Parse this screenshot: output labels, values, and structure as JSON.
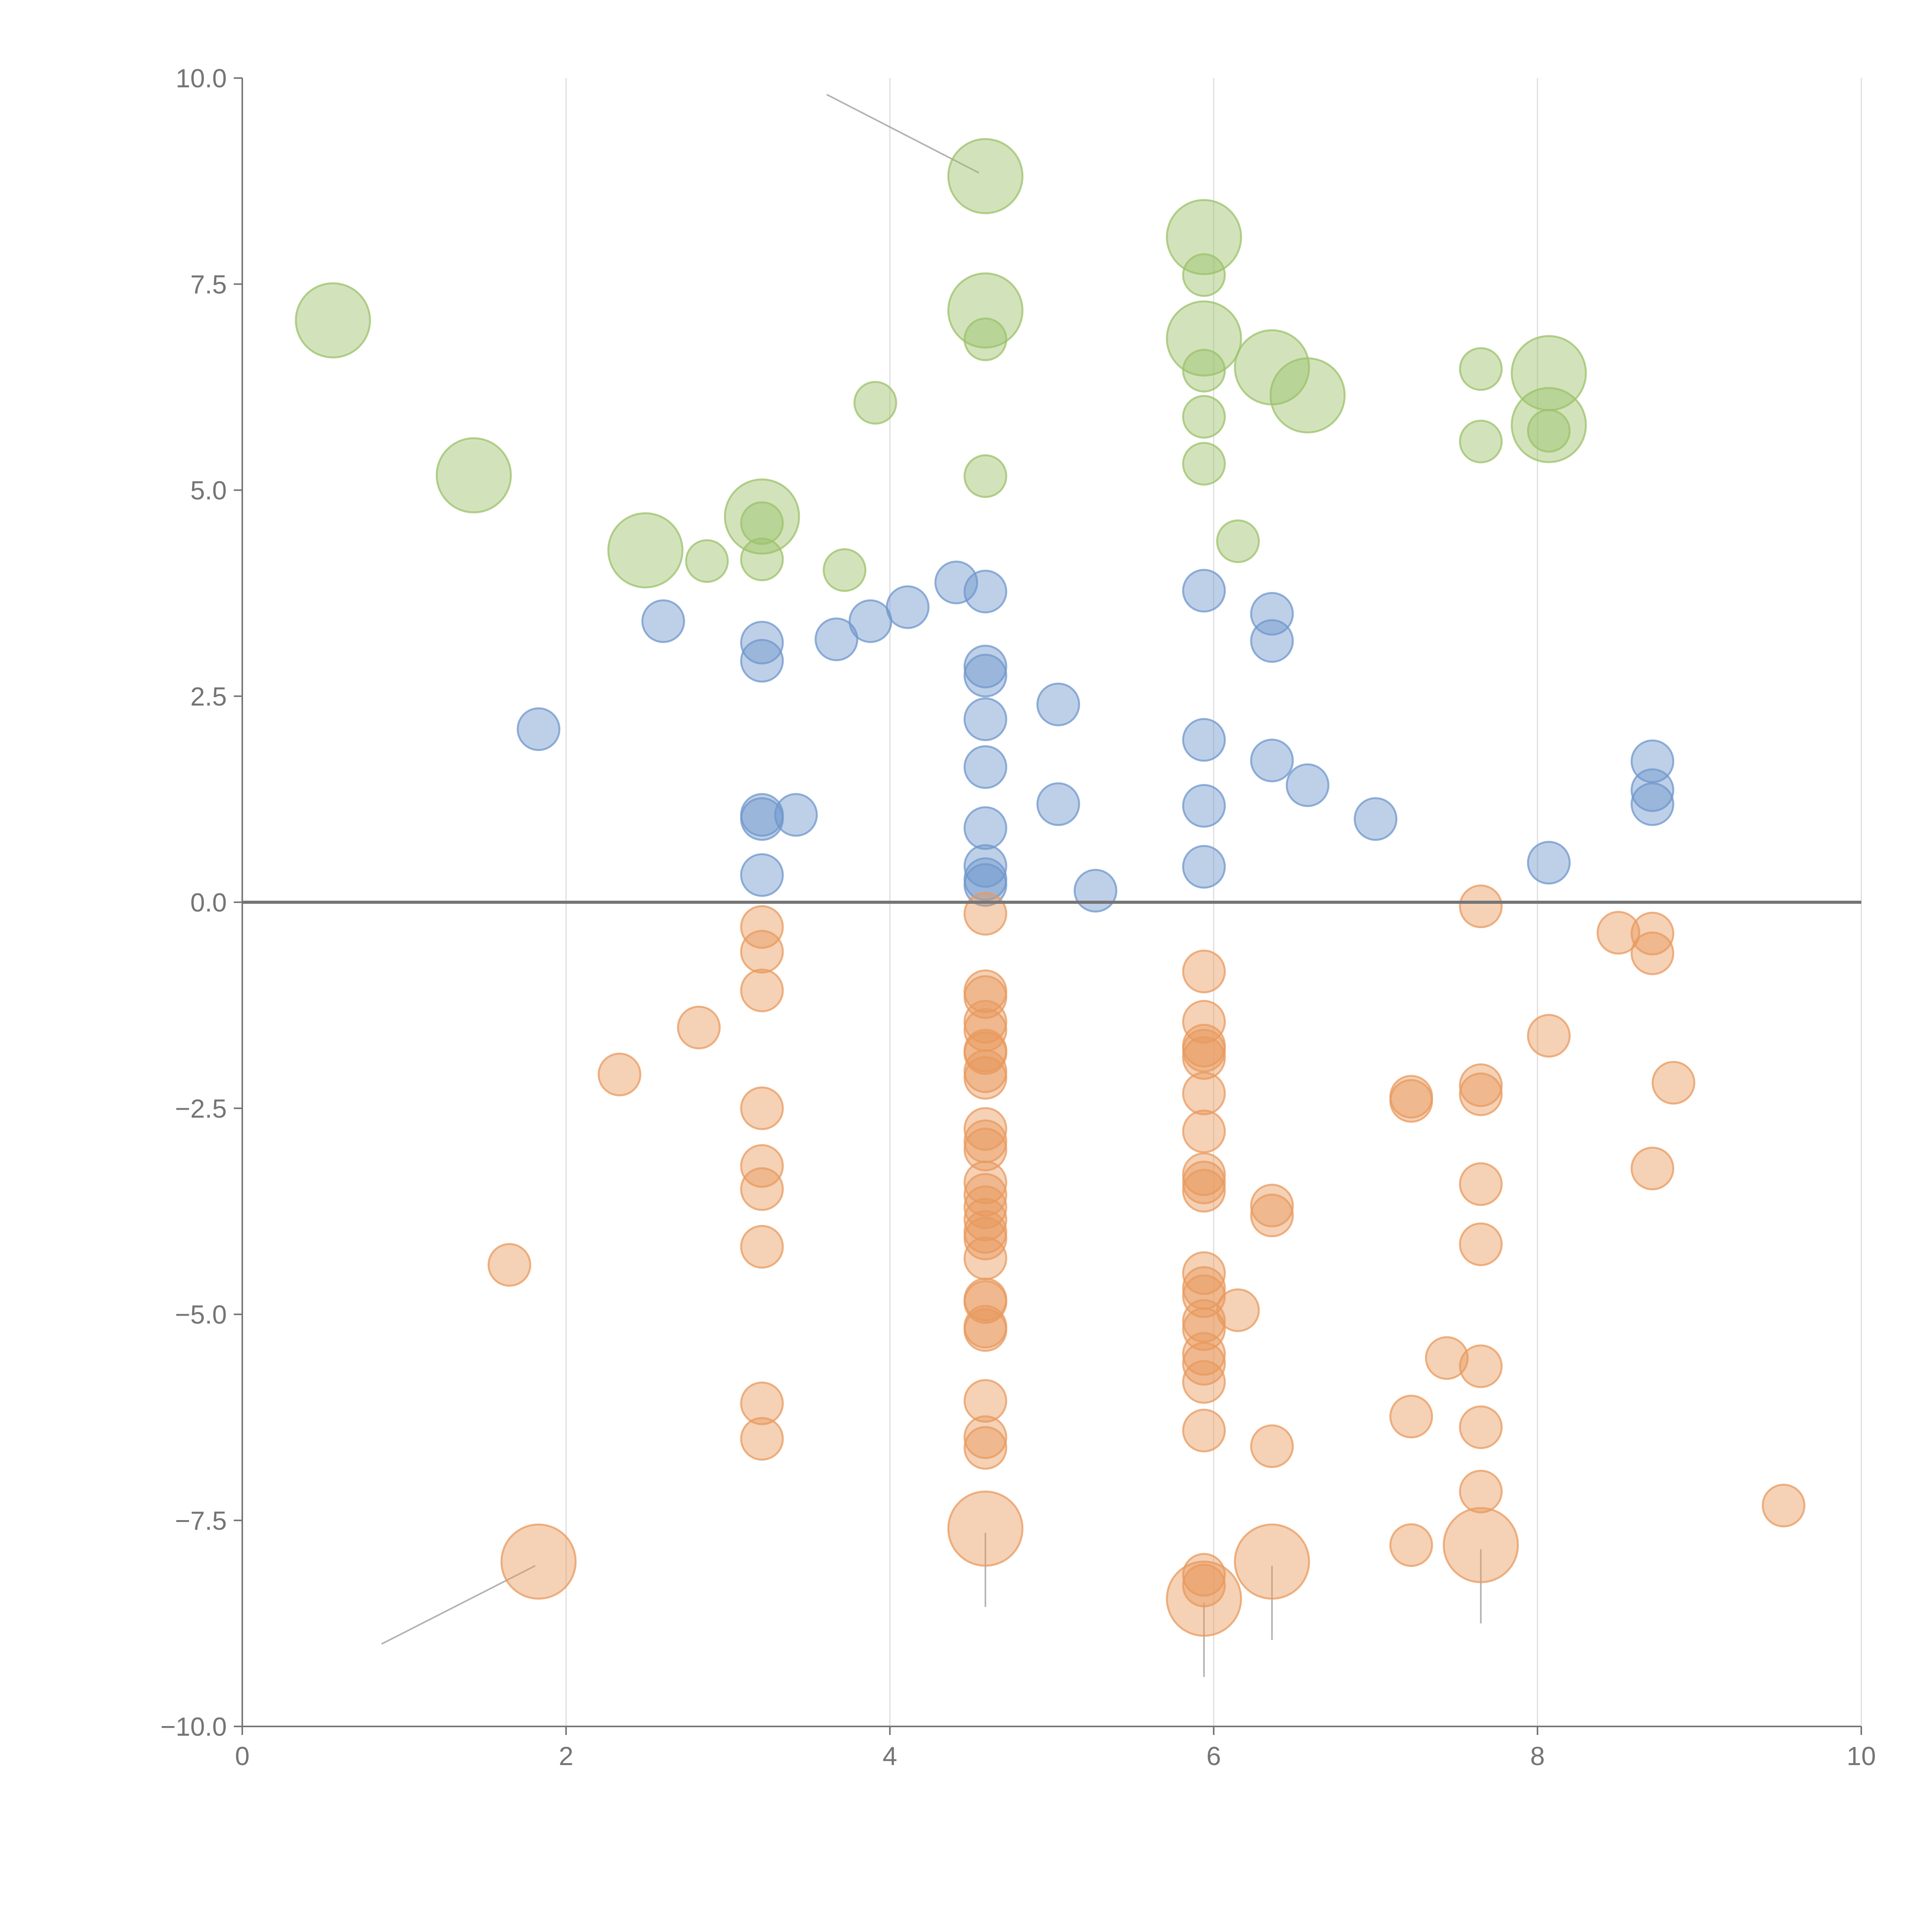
{
  "chart_data": {
    "type": "scatter",
    "title": "",
    "xlabel": "",
    "ylabel": "",
    "xlim": [
      0,
      10
    ],
    "ylim": [
      -10,
      10
    ],
    "x_ticks": [
      0,
      2,
      4,
      6,
      8,
      10
    ],
    "x_tick_labels": [
      "0",
      "2",
      "4",
      "6",
      "8",
      "10"
    ],
    "y_ticks": [
      10,
      7.5,
      5,
      2.5,
      0,
      -2.5,
      -5,
      -7.5,
      -10
    ],
    "y_tick_labels": [
      "10.0",
      "7.5",
      "5.0",
      "2.5",
      "0.0",
      "−2.5",
      "−5.0",
      "−7.5",
      "−10.0"
    ],
    "vertical_grid": true,
    "zero_line": true,
    "series": [
      {
        "name": "green",
        "color": "#9cc26a",
        "points": [
          [
            0.56,
            7.06,
            1
          ],
          [
            1.43,
            5.18,
            1
          ],
          [
            2.49,
            4.27,
            1
          ],
          [
            3.21,
            4.68,
            1
          ],
          [
            4.59,
            8.81,
            1
          ],
          [
            4.59,
            7.18,
            1
          ],
          [
            5.94,
            8.07,
            1
          ],
          [
            5.94,
            6.84,
            1
          ],
          [
            6.36,
            6.49,
            1
          ],
          [
            6.58,
            6.15,
            1
          ],
          [
            8.07,
            6.42,
            1
          ],
          [
            8.07,
            5.79,
            1
          ],
          [
            2.87,
            4.14,
            0
          ],
          [
            3.21,
            4.6,
            0
          ],
          [
            3.21,
            4.16,
            0
          ],
          [
            3.72,
            4.03,
            0
          ],
          [
            3.91,
            6.06,
            0
          ],
          [
            4.59,
            6.83,
            0
          ],
          [
            4.59,
            5.17,
            0
          ],
          [
            5.94,
            7.61,
            0
          ],
          [
            5.94,
            6.45,
            0
          ],
          [
            5.94,
            5.89,
            0
          ],
          [
            5.94,
            5.32,
            0
          ],
          [
            6.15,
            4.38,
            0
          ],
          [
            7.65,
            6.47,
            0
          ],
          [
            7.65,
            5.59,
            0
          ],
          [
            8.07,
            5.72,
            0
          ]
        ]
      },
      {
        "name": "blue",
        "color": "#6f97cc",
        "points": [
          [
            1.83,
            2.1,
            0
          ],
          [
            2.6,
            3.41,
            0
          ],
          [
            3.21,
            3.15,
            0
          ],
          [
            3.21,
            2.93,
            0
          ],
          [
            3.21,
            1.06,
            0
          ],
          [
            3.21,
            1.01,
            0
          ],
          [
            3.21,
            0.33,
            0
          ],
          [
            3.42,
            1.06,
            0
          ],
          [
            3.67,
            3.19,
            0
          ],
          [
            3.88,
            3.41,
            0
          ],
          [
            4.11,
            3.58,
            0
          ],
          [
            4.41,
            3.88,
            0
          ],
          [
            4.59,
            3.77,
            0
          ],
          [
            4.59,
            2.86,
            0
          ],
          [
            4.59,
            2.75,
            0
          ],
          [
            4.59,
            2.22,
            0
          ],
          [
            4.59,
            1.64,
            0
          ],
          [
            4.59,
            0.9,
            0
          ],
          [
            4.59,
            0.44,
            0
          ],
          [
            4.59,
            0.28,
            0
          ],
          [
            4.59,
            0.21,
            0
          ],
          [
            5.04,
            2.4,
            0
          ],
          [
            5.04,
            1.19,
            0
          ],
          [
            5.27,
            0.14,
            0
          ],
          [
            5.94,
            3.78,
            0
          ],
          [
            5.94,
            1.97,
            0
          ],
          [
            5.94,
            1.17,
            0
          ],
          [
            5.94,
            0.43,
            0
          ],
          [
            6.36,
            3.5,
            0
          ],
          [
            6.36,
            3.17,
            0
          ],
          [
            6.36,
            1.72,
            0
          ],
          [
            6.58,
            1.42,
            0
          ],
          [
            7.0,
            1.01,
            0
          ],
          [
            8.07,
            0.48,
            0
          ],
          [
            8.71,
            1.71,
            0
          ],
          [
            8.71,
            1.36,
            0
          ],
          [
            8.71,
            1.19,
            0
          ]
        ]
      },
      {
        "name": "orange",
        "color": "#e89a5e",
        "points": [
          [
            1.65,
            -4.4,
            0
          ],
          [
            1.83,
            -8.0,
            1
          ],
          [
            2.33,
            -2.09,
            0
          ],
          [
            2.82,
            -1.52,
            0
          ],
          [
            3.21,
            -0.3,
            0
          ],
          [
            3.21,
            -0.6,
            0
          ],
          [
            3.21,
            -1.07,
            0
          ],
          [
            3.21,
            -2.5,
            0
          ],
          [
            3.21,
            -3.2,
            0
          ],
          [
            3.21,
            -3.48,
            0
          ],
          [
            3.21,
            -4.18,
            0
          ],
          [
            3.21,
            -6.08,
            0
          ],
          [
            3.21,
            -6.51,
            0
          ],
          [
            4.59,
            -0.14,
            0
          ],
          [
            4.59,
            -1.08,
            0
          ],
          [
            4.59,
            -1.15,
            0
          ],
          [
            4.59,
            -1.45,
            0
          ],
          [
            4.59,
            -1.55,
            0
          ],
          [
            4.59,
            -1.8,
            0
          ],
          [
            4.59,
            -1.83,
            0
          ],
          [
            4.59,
            -2.05,
            0
          ],
          [
            4.59,
            -2.13,
            0
          ],
          [
            4.59,
            -2.75,
            0
          ],
          [
            4.59,
            -2.9,
            0
          ],
          [
            4.59,
            -3.0,
            0
          ],
          [
            4.59,
            -3.4,
            0
          ],
          [
            4.59,
            -3.55,
            0
          ],
          [
            4.59,
            -3.7,
            0
          ],
          [
            4.59,
            -3.85,
            0
          ],
          [
            4.59,
            -4.0,
            0
          ],
          [
            4.59,
            -4.08,
            0
          ],
          [
            4.59,
            -4.32,
            0
          ],
          [
            4.59,
            -4.82,
            0
          ],
          [
            4.59,
            -4.85,
            0
          ],
          [
            4.59,
            -5.15,
            0
          ],
          [
            4.59,
            -5.19,
            0
          ],
          [
            4.59,
            -6.05,
            0
          ],
          [
            4.59,
            -6.49,
            0
          ],
          [
            4.59,
            -6.62,
            0
          ],
          [
            4.59,
            -7.6,
            1
          ],
          [
            5.94,
            -0.84,
            0
          ],
          [
            5.94,
            -1.45,
            0
          ],
          [
            5.94,
            -1.74,
            0
          ],
          [
            5.94,
            -1.8,
            0
          ],
          [
            5.94,
            -1.89,
            0
          ],
          [
            5.94,
            -2.32,
            0
          ],
          [
            5.94,
            -2.78,
            0
          ],
          [
            5.94,
            -3.3,
            0
          ],
          [
            5.94,
            -3.4,
            0
          ],
          [
            5.94,
            -3.5,
            0
          ],
          [
            5.94,
            -4.5,
            0
          ],
          [
            5.94,
            -4.68,
            0
          ],
          [
            5.94,
            -4.78,
            0
          ],
          [
            5.94,
            -5.08,
            0
          ],
          [
            5.94,
            -5.18,
            0
          ],
          [
            5.94,
            -5.48,
            0
          ],
          [
            5.94,
            -5.6,
            0
          ],
          [
            5.94,
            -5.82,
            0
          ],
          [
            5.94,
            -6.41,
            0
          ],
          [
            5.94,
            -8.16,
            0
          ],
          [
            5.94,
            -8.29,
            0
          ],
          [
            5.94,
            -8.45,
            1
          ],
          [
            6.15,
            -4.95,
            0
          ],
          [
            6.36,
            -3.68,
            0
          ],
          [
            6.36,
            -3.8,
            0
          ],
          [
            6.36,
            -6.6,
            0
          ],
          [
            6.36,
            -8.0,
            1
          ],
          [
            7.22,
            -2.36,
            0
          ],
          [
            7.22,
            -2.41,
            0
          ],
          [
            7.22,
            -6.24,
            0
          ],
          [
            7.22,
            -7.8,
            0
          ],
          [
            7.44,
            -5.53,
            0
          ],
          [
            7.65,
            -0.05,
            0
          ],
          [
            7.65,
            -2.22,
            0
          ],
          [
            7.65,
            -2.33,
            0
          ],
          [
            7.65,
            -3.42,
            0
          ],
          [
            7.65,
            -4.15,
            0
          ],
          [
            7.65,
            -5.63,
            0
          ],
          [
            7.65,
            -6.37,
            0
          ],
          [
            7.65,
            -7.15,
            0
          ],
          [
            7.65,
            -7.8,
            1
          ],
          [
            8.07,
            -1.62,
            0
          ],
          [
            8.5,
            -0.37,
            0
          ],
          [
            8.71,
            -0.38,
            0
          ],
          [
            8.71,
            -0.62,
            0
          ],
          [
            8.71,
            -3.23,
            0
          ],
          [
            8.84,
            -2.19,
            0
          ],
          [
            9.52,
            -7.32,
            0
          ]
        ]
      }
    ],
    "leader_lines": [
      [
        3.61,
        9.8,
        4.55,
        8.85
      ],
      [
        0.86,
        -9.0,
        1.81,
        -8.05
      ],
      [
        4.59,
        -7.65,
        4.59,
        -8.55
      ],
      [
        5.94,
        -8.5,
        5.94,
        -9.4
      ],
      [
        6.36,
        -8.05,
        6.36,
        -8.95
      ],
      [
        7.65,
        -7.85,
        7.65,
        -8.75
      ]
    ]
  }
}
